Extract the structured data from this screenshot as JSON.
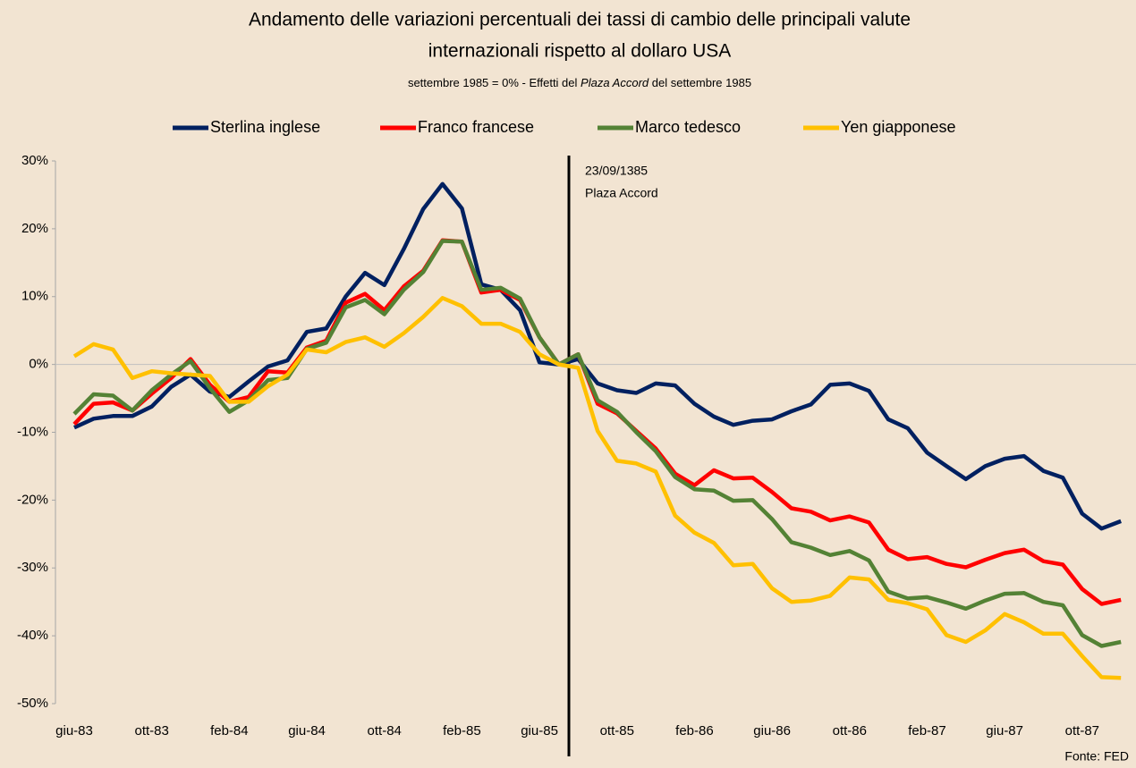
{
  "chart_data": {
    "type": "line",
    "title": [
      "Andamento delle variazioni percentuali dei tassi di cambio delle principali valute",
      "internazionali rispetto al dollaro USA"
    ],
    "subtitle": [
      "settembre 1985 = 0% - Effetti del ",
      "Plaza Accord",
      " del settembre 1985"
    ],
    "annotation": [
      "23/09/1385",
      "Plaza Accord"
    ],
    "source": "Fonte: FED",
    "categories": [
      "giu-83",
      null,
      null,
      null,
      "ott-83",
      null,
      null,
      null,
      "feb-84",
      null,
      null,
      null,
      "giu-84",
      null,
      null,
      null,
      "ott-84",
      null,
      null,
      null,
      "feb-85",
      null,
      null,
      null,
      "giu-85",
      null,
      null,
      null,
      "ott-85",
      null,
      null,
      null,
      "feb-86",
      null,
      null,
      null,
      "giu-86",
      null,
      null,
      null,
      "ott-86",
      null,
      null,
      null,
      "feb-87",
      null,
      null,
      null,
      "giu-87",
      null,
      null,
      null,
      "ott-87",
      null,
      null
    ],
    "series": [
      {
        "name": "Sterlina inglese",
        "color": "#002060",
        "values": [
          -9.3,
          -8,
          -7.6,
          -7.6,
          -6.2,
          -3.3,
          -1.5,
          -4,
          -4.8,
          -2.5,
          -0.3,
          0.6,
          4.8,
          5.3,
          10,
          13.5,
          11.7,
          17,
          22.9,
          26.6,
          23,
          11.8,
          11,
          8,
          0.3,
          0,
          0.8,
          -2.8,
          -3.8,
          -4.2,
          -2.8,
          -3.1,
          -5.8,
          -7.7,
          -8.9,
          -8.3,
          -8.1,
          -6.9,
          -5.9,
          -3,
          -2.8,
          -3.9,
          -8.1,
          -9.4,
          -13,
          -15,
          -16.9,
          -15,
          -13.9,
          -13.5,
          -15.7,
          -16.7,
          -22,
          -24.2,
          -23.1
        ]
      },
      {
        "name": "Franco francese",
        "color": "#ff0000",
        "values": [
          -8.8,
          -5.8,
          -5.6,
          -6.8,
          -4.3,
          -2,
          0.8,
          -3,
          -5.5,
          -4.8,
          -1,
          -1.2,
          2.5,
          3.5,
          9.1,
          10.4,
          8,
          11.5,
          13.8,
          18.3,
          18.1,
          10.6,
          11,
          9.5,
          4,
          0,
          1.5,
          -5.8,
          -7.2,
          -9.8,
          -12.4,
          -16.1,
          -17.8,
          -15.6,
          -16.8,
          -16.7,
          -18.8,
          -21.2,
          -21.7,
          -23,
          -22.4,
          -23.3,
          -27.3,
          -28.7,
          -28.4,
          -29.4,
          -29.9,
          -28.8,
          -27.8,
          -27.3,
          -29,
          -29.5,
          -33.1,
          -35.3,
          -34.7
        ]
      },
      {
        "name": "Marco tedesco",
        "color": "#548235",
        "values": [
          -7.3,
          -4.4,
          -4.6,
          -6.8,
          -3.8,
          -1.5,
          0.5,
          -3.5,
          -7,
          -5.3,
          -2.3,
          -2,
          2.3,
          3.2,
          8.4,
          9.5,
          7.4,
          11,
          13.6,
          18.2,
          18.1,
          11,
          11.3,
          9.7,
          4,
          0,
          1.5,
          -5.3,
          -7,
          -10,
          -12.8,
          -16.6,
          -18.4,
          -18.6,
          -20.1,
          -20,
          -22.8,
          -26.2,
          -27,
          -28.1,
          -27.5,
          -28.9,
          -33.5,
          -34.5,
          -34.3,
          -35.1,
          -36,
          -34.8,
          -33.8,
          -33.7,
          -35,
          -35.5,
          -39.9,
          -41.5,
          -40.9
        ]
      },
      {
        "name": "Yen giapponese",
        "color": "#ffc000",
        "values": [
          1.2,
          3,
          2.2,
          -2,
          -1,
          -1.3,
          -1.5,
          -1.7,
          -5.5,
          -5.5,
          -3.2,
          -1.5,
          2.2,
          1.8,
          3.3,
          4,
          2.6,
          4.6,
          7,
          9.8,
          8.6,
          6,
          6,
          4.8,
          1.5,
          0,
          -0.5,
          -9.8,
          -14.2,
          -14.6,
          -15.8,
          -22.3,
          -24.8,
          -26.3,
          -29.6,
          -29.4,
          -33,
          -35,
          -34.8,
          -34.1,
          -31.4,
          -31.7,
          -34.7,
          -35.2,
          -36.1,
          -39.9,
          -40.9,
          -39.2,
          -36.8,
          -38,
          -39.7,
          -39.7,
          -43,
          -46.1,
          -46.2
        ]
      }
    ],
    "ylim": [
      -50,
      30
    ],
    "yticks": [
      {
        "value": -50,
        "label": "-50%"
      },
      {
        "value": -40,
        "label": "-40%"
      },
      {
        "value": -30,
        "label": "-30%"
      },
      {
        "value": -20,
        "label": "-20%"
      },
      {
        "value": -10,
        "label": "-10%"
      },
      {
        "value": 0,
        "label": "0%"
      },
      {
        "value": 10,
        "label": "10%"
      },
      {
        "value": 20,
        "label": "20%"
      },
      {
        "value": 30,
        "label": "30%"
      }
    ],
    "grid": false,
    "legend": "top"
  }
}
